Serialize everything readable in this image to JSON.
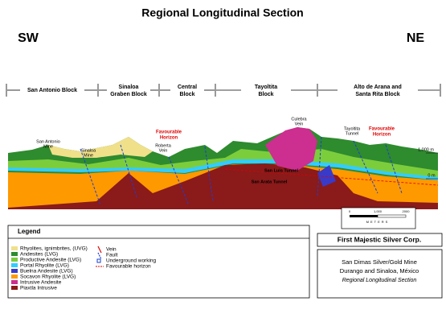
{
  "header": {
    "title": "Regional Longitudinal Section",
    "left_direction": "SW",
    "right_direction": "NE"
  },
  "blocks": [
    {
      "lines": [
        "San Antonio Block"
      ]
    },
    {
      "lines": [
        "Sinaloa",
        "Graben Block"
      ]
    },
    {
      "lines": [
        "Central",
        "Block"
      ]
    },
    {
      "lines": [
        "Tayoltita",
        "Block"
      ]
    },
    {
      "lines": [
        "Alto de Arana and",
        "Santa Rita Block"
      ]
    }
  ],
  "section_labels": {
    "san_antonio_mine": [
      "San Antonio",
      "Mine"
    ],
    "sinaloa_mine": [
      "Sinaloa",
      "Mine"
    ],
    "roberta_vein": [
      "Roberta",
      "Vein"
    ],
    "favourable_horizon_left": [
      "Favourable",
      "Horizon"
    ],
    "culebra_vein": [
      "Culebra",
      "Vein"
    ],
    "tayoltita_tunnel": [
      "Tayoltita",
      "Tunnel"
    ],
    "favourable_horizon_right": [
      "Favourable",
      "Horizon"
    ],
    "san_luis_tunnel": "San Luis Tunnel",
    "san_arata_tunnel": "San Arata Tunnel",
    "elevation_top": "1,000 m",
    "elevation_zero": "0 m"
  },
  "scale_bar": {
    "ticks": [
      "0",
      "1,000",
      "2000"
    ],
    "unit": "METERS"
  },
  "legend": {
    "title": "Legend",
    "units": [
      "Rhyolites, ignimbrites, (UVG)",
      "Andesites (LVG)",
      "Productive Andesite (LVG)",
      "Portal Rhyolite (LVG)",
      "Buelna Andesite (LVG)",
      "Socavon Rhyolite (LVG)",
      "Intrusive Andesite",
      "Piaxtla Intrusive"
    ],
    "symbols": [
      "Vein",
      "Fault",
      "Underground working",
      "Favourable horizon"
    ]
  },
  "info_box": {
    "company": "First Majestic Silver Corp.",
    "lines": [
      "San Dimas Silver/Gold Mine",
      "Durango and Sinaloa, México",
      "Regional Longitudinal Section"
    ]
  }
}
